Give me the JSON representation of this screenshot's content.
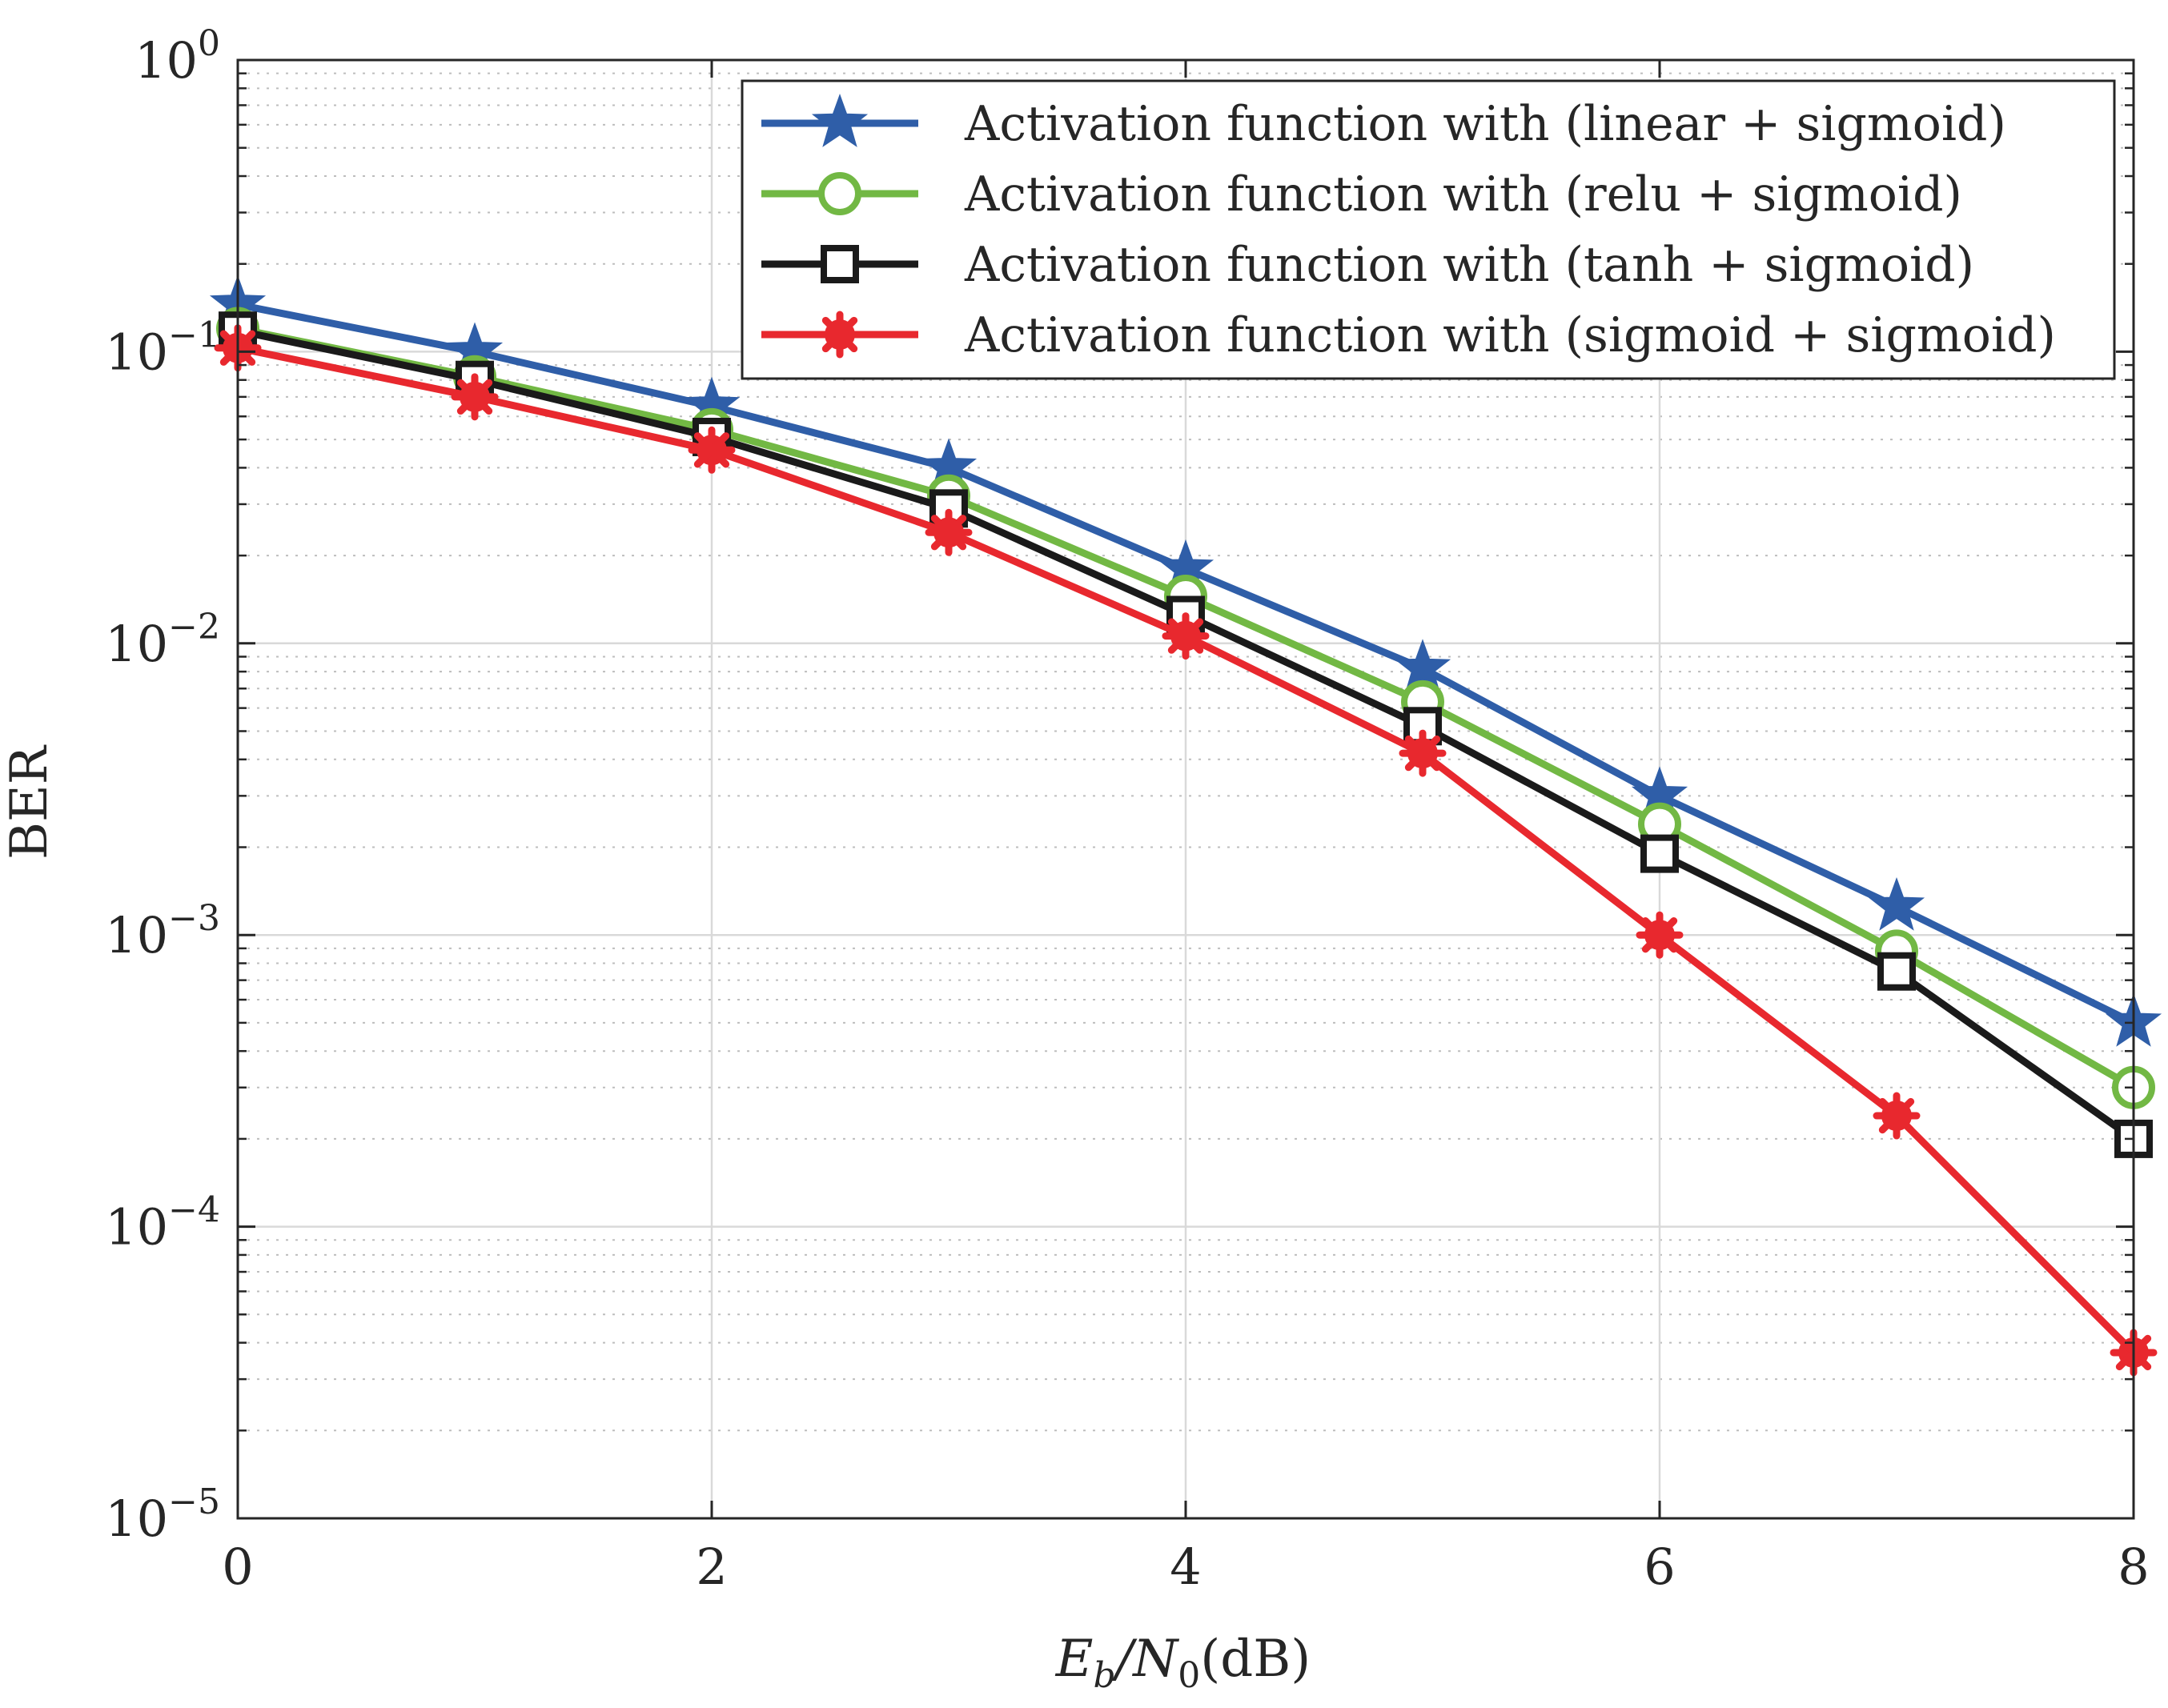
{
  "chart_data": {
    "type": "line",
    "title": "",
    "xlabel": "E_b/N_0(dB)",
    "xlabel_parts": {
      "main": "E",
      "sub1": "b",
      "slash": "/N",
      "sub2": "0",
      "unit": "(dB)"
    },
    "ylabel": "BER",
    "yscale": "log",
    "xlim": [
      0,
      8
    ],
    "ylim": [
      1e-05,
      1
    ],
    "x_ticks": [
      0,
      2,
      4,
      6,
      8
    ],
    "x_tick_labels": [
      "0",
      "2",
      "4",
      "6",
      "8"
    ],
    "y_ticks": [
      1,
      0.1,
      0.01,
      0.001,
      0.0001,
      1e-05
    ],
    "y_tick_labels": [
      {
        "base": "10",
        "exp": "0"
      },
      {
        "base": "10",
        "exp": "−1"
      },
      {
        "base": "10",
        "exp": "−2"
      },
      {
        "base": "10",
        "exp": "−3"
      },
      {
        "base": "10",
        "exp": "−4"
      },
      {
        "base": "10",
        "exp": "−5"
      }
    ],
    "grid": true,
    "legend_position": "top-right",
    "x": [
      0,
      1,
      2,
      3,
      4,
      5,
      6,
      7,
      8
    ],
    "series": [
      {
        "name": "Activation function with (linear + sigmoid)",
        "color": "#2f5ea8",
        "marker": "star",
        "values": [
          0.145,
          0.1,
          0.065,
          0.04,
          0.018,
          0.0082,
          0.003,
          0.00125,
          0.0005
        ]
      },
      {
        "name": "Activation function with (relu + sigmoid)",
        "color": "#72b844",
        "marker": "circle",
        "values": [
          0.12,
          0.082,
          0.054,
          0.032,
          0.0145,
          0.0063,
          0.0024,
          0.00088,
          0.0003
        ]
      },
      {
        "name": "Activation function with (tanh + sigmoid)",
        "color": "#1a1a1a",
        "marker": "square",
        "values": [
          0.118,
          0.08,
          0.051,
          0.029,
          0.0125,
          0.0052,
          0.0019,
          0.00075,
          0.0002
        ]
      },
      {
        "name": "Activation function with (sigmoid + sigmoid)",
        "color": "#e8282e",
        "marker": "asterisk",
        "values": [
          0.103,
          0.07,
          0.046,
          0.024,
          0.0106,
          0.0042,
          0.001,
          0.00024,
          3.7e-05
        ]
      }
    ]
  }
}
